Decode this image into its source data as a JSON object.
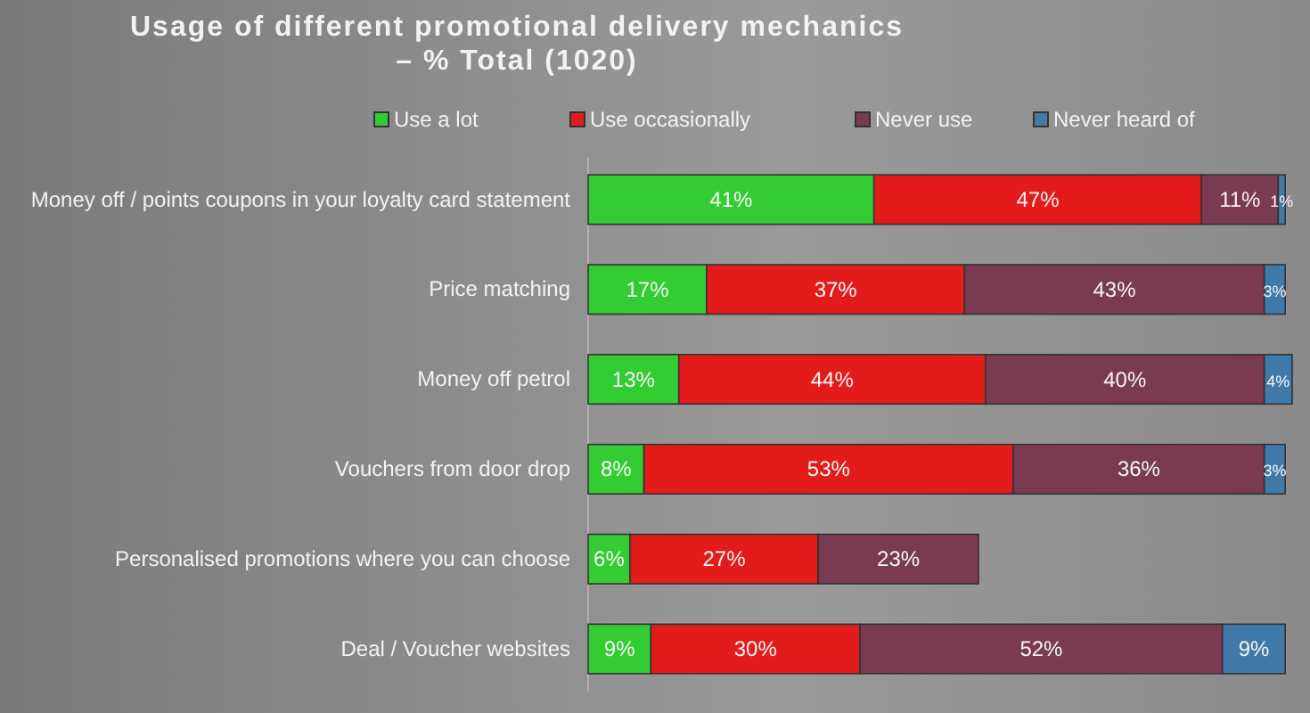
{
  "chart_data": {
    "type": "bar",
    "orientation": "horizontal",
    "stacked": true,
    "title": "Usage of different promotional delivery mechanics\n– % Total (1020)",
    "categories": [
      "Money off / points coupons in your loyalty card statement",
      "Price matching",
      "Money off petrol",
      "Vouchers from door drop",
      "Personalised promotions where you can choose",
      "Deal / Voucher websites"
    ],
    "series": [
      {
        "name": "Use a lot",
        "color": "#33cc33",
        "values": [
          41,
          17,
          13,
          8,
          6,
          9
        ],
        "value_labels": [
          "41%",
          "17%",
          "13%",
          "8%",
          "6%",
          "9%"
        ]
      },
      {
        "name": "Use occasionally",
        "color": "#e31b1b",
        "values": [
          47,
          37,
          44,
          53,
          27,
          30
        ],
        "value_labels": [
          "47%",
          "37%",
          "44%",
          "53%",
          "27%",
          "30%"
        ]
      },
      {
        "name": "Never use",
        "color": "#7a3b52",
        "values": [
          11,
          43,
          40,
          36,
          23,
          52
        ],
        "value_labels": [
          "11%",
          "43%",
          "40%",
          "36%",
          "23%",
          "52%"
        ]
      },
      {
        "name": "Never heard of",
        "color": "#3f7aa8",
        "values": [
          1,
          3,
          4,
          3,
          null,
          9
        ],
        "value_labels": [
          "1%",
          "3%",
          "4%",
          "3%",
          null,
          "9%"
        ]
      }
    ],
    "tick_labels": "y",
    "legend": "top"
  }
}
